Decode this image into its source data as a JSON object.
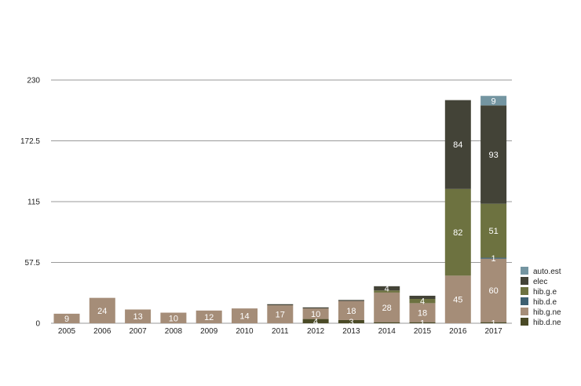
{
  "chart_data": {
    "type": "bar",
    "stacked": true,
    "categories": [
      "2005",
      "2006",
      "2007",
      "2008",
      "2009",
      "2010",
      "2011",
      "2012",
      "2013",
      "2014",
      "2015",
      "2016",
      "2017"
    ],
    "y_ticks": [
      "0",
      "57.5",
      "115",
      "172.5",
      "230"
    ],
    "ylim": [
      0,
      230
    ],
    "grid": true,
    "legend_position": "right-bottom",
    "series": [
      {
        "name": "hib.d.ne",
        "color": "#4a4a26",
        "values": [
          0,
          0,
          0,
          0,
          0,
          0,
          0,
          4,
          3,
          1,
          1,
          0,
          1
        ],
        "labels": [
          "",
          "",
          "",
          "",
          "",
          "",
          "",
          "4",
          "3",
          "",
          "1",
          "",
          "1"
        ]
      },
      {
        "name": "hib.g.ne",
        "color": "#a58d78",
        "values": [
          9,
          24,
          13,
          10,
          12,
          14,
          17,
          10,
          18,
          28,
          18,
          45,
          60
        ],
        "labels": [
          "9",
          "24",
          "13",
          "10",
          "12",
          "14",
          "17",
          "10",
          "18",
          "28",
          "18",
          "45",
          "60"
        ]
      },
      {
        "name": "hib.d.e",
        "color": "#3d5f70",
        "values": [
          0,
          0,
          0,
          0,
          0,
          0,
          0,
          0,
          0,
          0,
          0,
          0,
          1
        ],
        "labels": [
          "",
          "",
          "",
          "",
          "",
          "",
          "",
          "",
          "",
          "",
          "",
          "",
          "1"
        ]
      },
      {
        "name": "hib.g.e",
        "color": "#6d7240",
        "values": [
          0,
          0,
          0,
          0,
          0,
          0,
          0,
          0,
          0,
          2,
          4,
          82,
          51
        ],
        "labels": [
          "",
          "",
          "",
          "",
          "",
          "",
          "",
          "",
          "",
          "",
          "4",
          "82",
          "51"
        ]
      },
      {
        "name": "elec",
        "color": "#434337",
        "values": [
          0,
          0,
          0,
          0,
          0,
          0,
          1,
          1,
          1,
          4,
          3,
          84,
          93
        ],
        "labels": [
          "",
          "",
          "",
          "",
          "",
          "",
          "",
          "",
          "",
          "4",
          "",
          "84",
          "93"
        ]
      },
      {
        "name": "auto.est",
        "color": "#7495a1",
        "values": [
          0,
          0,
          0,
          0,
          0,
          0,
          0,
          0,
          0,
          0,
          0,
          0,
          9
        ],
        "labels": [
          "",
          "",
          "",
          "",
          "",
          "",
          "",
          "",
          "",
          "",
          "",
          "",
          "9"
        ]
      }
    ],
    "legend_order": [
      "auto.est",
      "elec",
      "hib.g.e",
      "hib.d.e",
      "hib.g.ne",
      "hib.d.ne"
    ]
  }
}
